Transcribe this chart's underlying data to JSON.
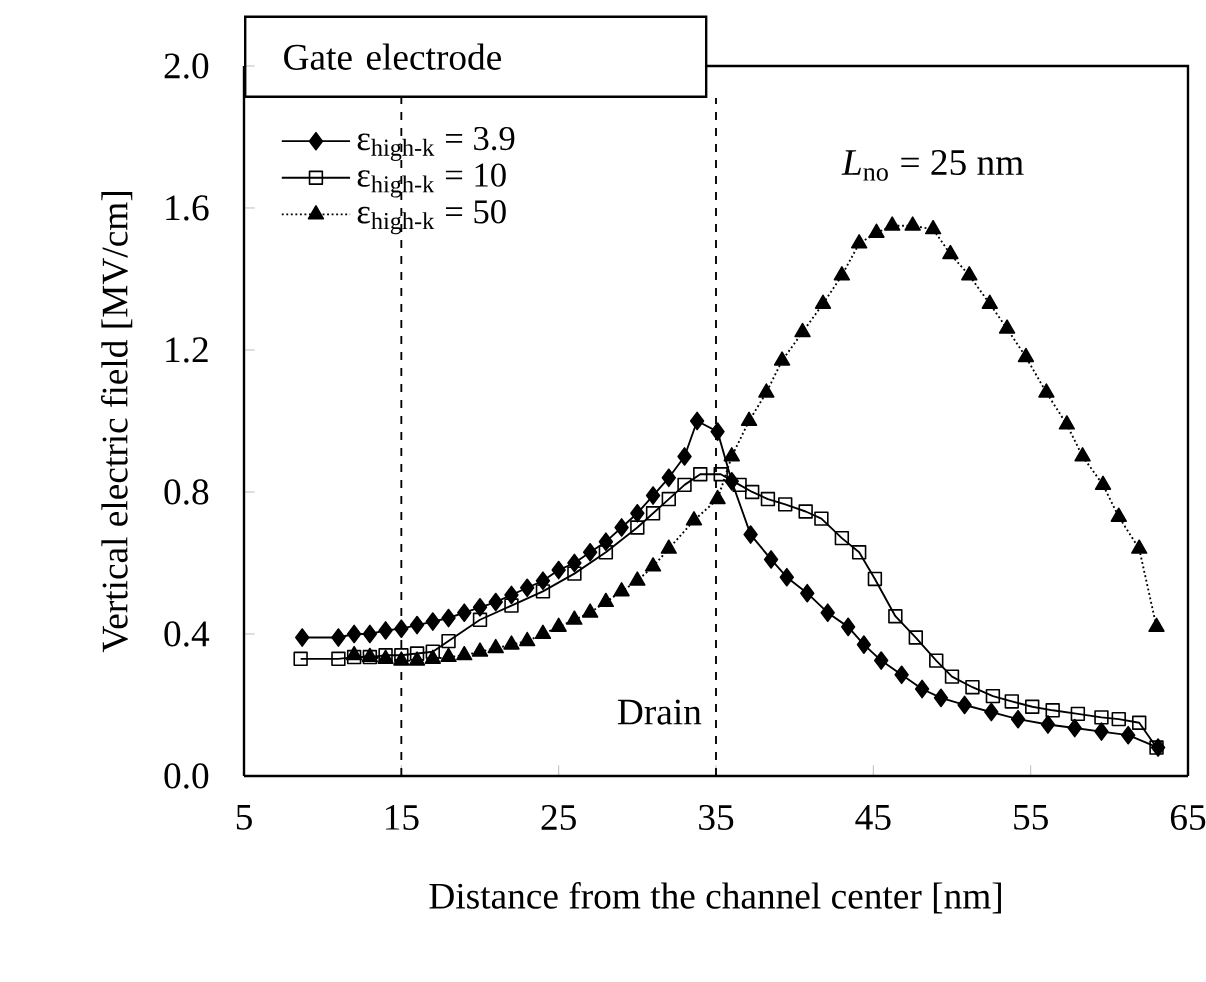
{
  "chart_data": {
    "type": "line",
    "xlabel": "Distance from the channel center [nm]",
    "ylabel": "Vertical electric field [MV/cm]",
    "xlim": [
      5,
      65
    ],
    "ylim": [
      0,
      2
    ],
    "xticks": [
      5,
      15,
      25,
      35,
      45,
      55,
      65
    ],
    "yticks": [
      {
        "value": 0,
        "label": "0.0"
      },
      0.4,
      0.8,
      1.2,
      1.6,
      {
        "value": 2,
        "label": "2.0"
      }
    ],
    "legend": "top left",
    "grid": false,
    "annotations": [
      "Gate electrode",
      "*L*$_{no}$ = 25 nm",
      "Drain"
    ],
    "ref_lines": [
      {
        "axis": "x",
        "value": 15,
        "line_style": "dashed",
        "color": "#000000"
      },
      {
        "axis": "x",
        "value": 35,
        "line_style": "dashed",
        "color": "#000000"
      }
    ],
    "series": [
      {
        "name": "ε$_{high-k}$ = 3.9",
        "color": "#000000",
        "marker": "diamond",
        "line_style": "solid",
        "x": [
          8.7,
          11,
          12,
          13,
          14,
          15,
          16,
          17,
          18,
          19,
          20,
          21,
          22,
          23,
          24,
          25,
          26,
          27,
          28,
          29,
          30,
          31,
          32,
          33,
          33.8,
          35.1,
          36.0,
          37.2,
          38.5,
          39.5,
          40.8,
          42.1,
          43.4,
          44.4,
          45.5,
          46.8,
          48.1,
          49.3,
          50.8,
          52.5,
          54.2,
          56.1,
          57.8,
          59.5,
          61.2,
          63.1
        ],
        "values": [
          0.39,
          0.39,
          0.4,
          0.4,
          0.41,
          0.415,
          0.425,
          0.435,
          0.445,
          0.46,
          0.475,
          0.49,
          0.51,
          0.53,
          0.55,
          0.58,
          0.6,
          0.63,
          0.66,
          0.7,
          0.74,
          0.79,
          0.84,
          0.9,
          1.0,
          0.97,
          0.83,
          0.68,
          0.61,
          0.56,
          0.515,
          0.46,
          0.42,
          0.37,
          0.325,
          0.285,
          0.245,
          0.22,
          0.2,
          0.18,
          0.16,
          0.145,
          0.135,
          0.125,
          0.115,
          0.08
        ]
      },
      {
        "name": "ε$_{high-k}$ = 10",
        "color": "#000000",
        "marker": "square",
        "line_style": "solid",
        "x": [
          8.6,
          11,
          12,
          13,
          14,
          15,
          16,
          17,
          18,
          20,
          22,
          24,
          26,
          28,
          30,
          31,
          32,
          33,
          34,
          35.3,
          36.5,
          37.3,
          38.3,
          39.4,
          40.7,
          41.7,
          43,
          44.1,
          45.1,
          46.4,
          47.7,
          49,
          50,
          51.3,
          52.6,
          53.8,
          55.1,
          56.4,
          58,
          59.5,
          60.6,
          61.9,
          63
        ],
        "values": [
          0.33,
          0.33,
          0.335,
          0.335,
          0.34,
          0.34,
          0.345,
          0.35,
          0.38,
          0.44,
          0.48,
          0.52,
          0.57,
          0.63,
          0.7,
          0.74,
          0.78,
          0.82,
          0.85,
          0.85,
          0.82,
          0.8,
          0.78,
          0.765,
          0.745,
          0.725,
          0.67,
          0.63,
          0.555,
          0.45,
          0.39,
          0.325,
          0.28,
          0.25,
          0.225,
          0.21,
          0.195,
          0.185,
          0.175,
          0.165,
          0.16,
          0.15,
          0.08
        ]
      },
      {
        "name": "ε$_{high-k}$ = 50",
        "color": "#000000",
        "marker": "triangle",
        "line_style": "dotted",
        "x": [
          12,
          13,
          14,
          15,
          16,
          17,
          18,
          19,
          20,
          21,
          22,
          23,
          24,
          25,
          26,
          27,
          28,
          29,
          30,
          31,
          32,
          33.6,
          35.1,
          36.0,
          37.1,
          38.2,
          39.2,
          40.5,
          41.8,
          43,
          44.1,
          45.2,
          46.2,
          47.5,
          48.8,
          49.9,
          51.1,
          52.4,
          53.5,
          54.7,
          56,
          57.3,
          58.3,
          59.6,
          60.6,
          61.9,
          63
        ],
        "values": [
          0.34,
          0.335,
          0.33,
          0.325,
          0.325,
          0.33,
          0.335,
          0.34,
          0.35,
          0.36,
          0.37,
          0.38,
          0.4,
          0.42,
          0.44,
          0.46,
          0.49,
          0.52,
          0.55,
          0.59,
          0.64,
          0.72,
          0.78,
          0.9,
          1.0,
          1.08,
          1.17,
          1.25,
          1.33,
          1.41,
          1.5,
          1.53,
          1.55,
          1.55,
          1.54,
          1.47,
          1.41,
          1.33,
          1.26,
          1.18,
          1.08,
          0.99,
          0.9,
          0.82,
          0.73,
          0.64,
          0.42
        ]
      }
    ]
  }
}
